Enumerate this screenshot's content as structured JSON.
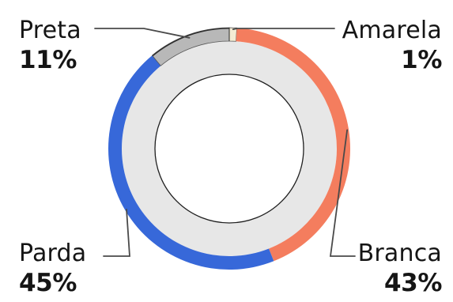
{
  "chart_data": {
    "type": "pie",
    "categories": [
      "Amarela",
      "Branca",
      "Parda",
      "Preta"
    ],
    "values": [
      1,
      43,
      45,
      11
    ],
    "labels": [
      {
        "name": "Preta",
        "value": "11%"
      },
      {
        "name": "Amarela",
        "value": "1%"
      },
      {
        "name": "Parda",
        "value": "45%"
      },
      {
        "name": "Branca",
        "value": "43%"
      }
    ],
    "colors": {
      "Amarela": "#f4ecd3",
      "Branca": "#f47d5e",
      "Parda": "#3768d9",
      "Preta": "#b8b8b8",
      "inner_ring": "#e7e7e7",
      "line": "#4a4a4a"
    },
    "title": "",
    "legend": "direct labels at corners",
    "grid": false
  }
}
